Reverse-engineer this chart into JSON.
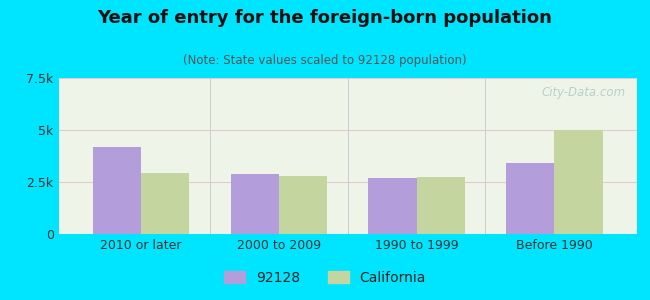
{
  "title": "Year of entry for the foreign-born population",
  "subtitle": "(Note: State values scaled to 92128 population)",
  "categories": [
    "2010 or later",
    "2000 to 2009",
    "1990 to 1999",
    "Before 1990"
  ],
  "values_92128": [
    4200,
    2900,
    2700,
    3400
  ],
  "values_california": [
    2950,
    2800,
    2750,
    5000
  ],
  "color_92128": "#b39ddb",
  "color_california": "#c5d5a0",
  "background_outer": "#00e5ff",
  "background_plot": "#eef5e8",
  "ylim": [
    0,
    7500
  ],
  "yticks": [
    0,
    2500,
    5000,
    7500
  ],
  "ytick_labels": [
    "0",
    "2.5k",
    "5k",
    "7.5k"
  ],
  "bar_width": 0.35,
  "legend_label_92128": "92128",
  "legend_label_california": "California",
  "watermark": "City-Data.com",
  "grid_color": "#e8c8cc"
}
